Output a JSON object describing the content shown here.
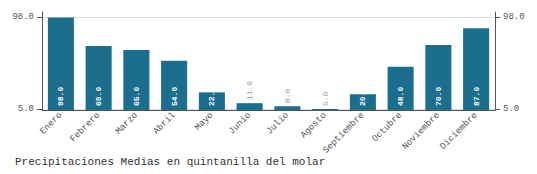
{
  "chart_data": {
    "type": "bar",
    "xlabel": "Precipitaciones Medias en quintanilla del molar",
    "categories": [
      "Enero",
      "Febrero",
      "Marzo",
      "Abril",
      "Mayo",
      "Junio",
      "Julio",
      "Agosto",
      "Septiembre",
      "Octubre",
      "Noviembre",
      "Diciembre"
    ],
    "values": [
      98.0,
      69.0,
      65.0,
      54.0,
      22.0,
      11.0,
      8.0,
      5.0,
      20.0,
      48.0,
      70.0,
      87.0
    ],
    "value_labels": [
      "98.0",
      "69.0",
      "65.0",
      "54.0",
      "22.0",
      "11.0",
      "8.0",
      "5.0",
      "20.0",
      "48.0",
      "70.0",
      "87.0"
    ],
    "data_labels": true,
    "color": "#1b6e8e",
    "ylim": [
      4.07,
      103.58
    ],
    "yticks": [
      {
        "value": 5,
        "label": "5.0"
      },
      {
        "value": 98,
        "label": "98.0"
      }
    ],
    "y2lim": [
      4.07,
      103.58
    ],
    "y2ticks": [
      {
        "value": 5,
        "label": "5.0"
      },
      {
        "value": 98,
        "label": "98.0"
      }
    ],
    "grid": true
  }
}
